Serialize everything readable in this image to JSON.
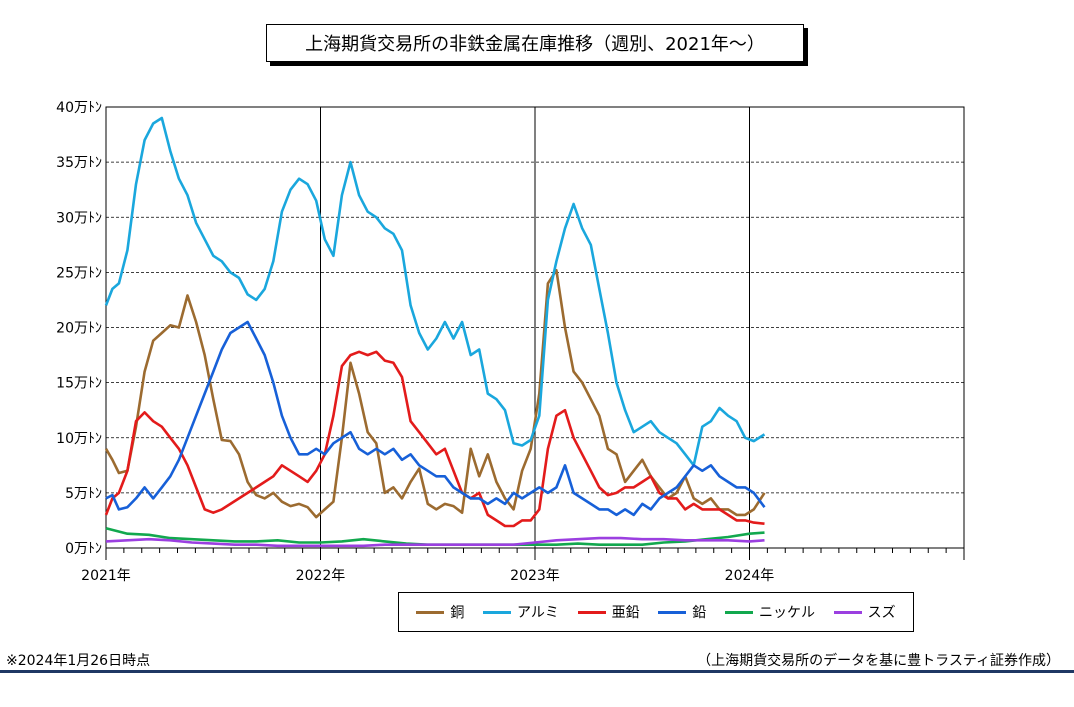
{
  "title": "上海期貨交易所の非鉄金属在庫推移（週別、2021年～）",
  "note_left": "※2024年1月26日時点",
  "note_right": "（上海期貨交易所のデータを基に豊トラスティ証券作成）",
  "chart_data": {
    "type": "line",
    "title": "上海期貨交易所の非鉄金属在庫推移（週別、2021年～）",
    "xlabel": "",
    "ylabel": "",
    "x_range": [
      2021.0,
      2025.0
    ],
    "x_ticks": [
      2021,
      2022,
      2023,
      2024
    ],
    "x_tick_labels": [
      "2021年",
      "2022年",
      "2023年",
      "2024年"
    ],
    "ylim": [
      0,
      40
    ],
    "y_ticks": [
      0,
      5,
      10,
      15,
      20,
      25,
      30,
      35,
      40
    ],
    "y_tick_labels": [
      "0万ﾄﾝ",
      "5万ﾄﾝ",
      "10万ﾄﾝ",
      "15万ﾄﾝ",
      "20万ﾄﾝ",
      "25万ﾄﾝ",
      "30万ﾄﾝ",
      "35万ﾄﾝ",
      "40万ﾄﾝ"
    ],
    "grid": "horizontal dashed, vertical at year boundaries",
    "legend_position": "bottom",
    "series": [
      {
        "name": "銅",
        "color": "#9c6b30",
        "x": [
          2021.0,
          2021.03,
          2021.06,
          2021.1,
          2021.14,
          2021.18,
          2021.22,
          2021.26,
          2021.3,
          2021.34,
          2021.38,
          2021.42,
          2021.46,
          2021.5,
          2021.54,
          2021.58,
          2021.62,
          2021.66,
          2021.7,
          2021.74,
          2021.78,
          2021.82,
          2021.86,
          2021.9,
          2021.94,
          2021.98,
          2022.02,
          2022.06,
          2022.1,
          2022.14,
          2022.18,
          2022.22,
          2022.26,
          2022.3,
          2022.34,
          2022.38,
          2022.42,
          2022.46,
          2022.5,
          2022.54,
          2022.58,
          2022.62,
          2022.66,
          2022.7,
          2022.74,
          2022.78,
          2022.82,
          2022.86,
          2022.9,
          2022.94,
          2022.98,
          2023.02,
          2023.06,
          2023.1,
          2023.14,
          2023.18,
          2023.22,
          2023.26,
          2023.3,
          2023.34,
          2023.38,
          2023.42,
          2023.46,
          2023.5,
          2023.54,
          2023.58,
          2023.62,
          2023.66,
          2023.7,
          2023.74,
          2023.78,
          2023.82,
          2023.86,
          2023.9,
          2023.94,
          2023.98,
          2024.02,
          2024.07
        ],
        "values": [
          9.0,
          8.0,
          6.8,
          7.0,
          11.0,
          16.0,
          18.8,
          19.5,
          20.2,
          20.0,
          22.9,
          20.5,
          17.5,
          13.5,
          9.8,
          9.7,
          8.5,
          6.0,
          4.8,
          4.5,
          5.0,
          4.2,
          3.8,
          4.0,
          3.7,
          2.8,
          3.5,
          4.2,
          10.0,
          16.8,
          14.0,
          10.5,
          9.5,
          5.0,
          5.5,
          4.5,
          6.0,
          7.2,
          4.0,
          3.5,
          4.0,
          3.8,
          3.2,
          9.0,
          6.5,
          8.5,
          6.0,
          4.5,
          3.5,
          7.0,
          9.0,
          14.0,
          24.0,
          25.2,
          20.0,
          16.0,
          15.0,
          13.5,
          12.0,
          9.0,
          8.5,
          6.0,
          7.0,
          8.0,
          6.5,
          5.5,
          4.5,
          5.0,
          6.5,
          4.5,
          4.0,
          4.5,
          3.5,
          3.5,
          3.0,
          3.0,
          3.5,
          5.0
        ]
      },
      {
        "name": "アルミ",
        "color": "#1aa7dd",
        "x": [
          2021.0,
          2021.03,
          2021.06,
          2021.1,
          2021.14,
          2021.18,
          2021.22,
          2021.26,
          2021.3,
          2021.34,
          2021.38,
          2021.42,
          2021.46,
          2021.5,
          2021.54,
          2021.58,
          2021.62,
          2021.66,
          2021.7,
          2021.74,
          2021.78,
          2021.82,
          2021.86,
          2021.9,
          2021.94,
          2021.98,
          2022.02,
          2022.06,
          2022.1,
          2022.14,
          2022.18,
          2022.22,
          2022.26,
          2022.3,
          2022.34,
          2022.38,
          2022.42,
          2022.46,
          2022.5,
          2022.54,
          2022.58,
          2022.62,
          2022.66,
          2022.7,
          2022.74,
          2022.78,
          2022.82,
          2022.86,
          2022.9,
          2022.94,
          2022.98,
          2023.02,
          2023.06,
          2023.1,
          2023.14,
          2023.18,
          2023.22,
          2023.26,
          2023.3,
          2023.34,
          2023.38,
          2023.42,
          2023.46,
          2023.5,
          2023.54,
          2023.58,
          2023.62,
          2023.66,
          2023.7,
          2023.74,
          2023.78,
          2023.82,
          2023.86,
          2023.9,
          2023.94,
          2023.98,
          2024.02,
          2024.07
        ],
        "values": [
          22.0,
          23.5,
          24.0,
          27.0,
          33.0,
          37.0,
          38.5,
          39.0,
          36.0,
          33.5,
          32.0,
          29.5,
          28.0,
          26.5,
          26.0,
          25.0,
          24.5,
          23.0,
          22.5,
          23.5,
          26.0,
          30.5,
          32.5,
          33.5,
          33.0,
          31.5,
          28.0,
          26.5,
          32.0,
          35.0,
          32.0,
          30.5,
          30.0,
          29.0,
          28.5,
          27.0,
          22.0,
          19.5,
          18.0,
          19.0,
          20.5,
          19.0,
          20.5,
          17.5,
          18.0,
          14.0,
          13.5,
          12.5,
          9.5,
          9.3,
          9.8,
          12.0,
          22.5,
          26.0,
          29.0,
          31.2,
          29.0,
          27.5,
          23.5,
          19.5,
          15.0,
          12.5,
          10.5,
          11.0,
          11.5,
          10.5,
          10.0,
          9.5,
          8.5,
          7.5,
          11.0,
          11.5,
          12.7,
          12.0,
          11.5,
          10.0,
          9.7,
          10.3
        ]
      },
      {
        "name": "亜鉛",
        "color": "#e31b1b",
        "x": [
          2021.0,
          2021.03,
          2021.06,
          2021.1,
          2021.14,
          2021.18,
          2021.22,
          2021.26,
          2021.3,
          2021.34,
          2021.38,
          2021.42,
          2021.46,
          2021.5,
          2021.54,
          2021.58,
          2021.62,
          2021.66,
          2021.7,
          2021.74,
          2021.78,
          2021.82,
          2021.86,
          2021.9,
          2021.94,
          2021.98,
          2022.02,
          2022.06,
          2022.1,
          2022.14,
          2022.18,
          2022.22,
          2022.26,
          2022.3,
          2022.34,
          2022.38,
          2022.42,
          2022.46,
          2022.5,
          2022.54,
          2022.58,
          2022.62,
          2022.66,
          2022.7,
          2022.74,
          2022.78,
          2022.82,
          2022.86,
          2022.9,
          2022.94,
          2022.98,
          2023.02,
          2023.06,
          2023.1,
          2023.14,
          2023.18,
          2023.22,
          2023.26,
          2023.3,
          2023.34,
          2023.38,
          2023.42,
          2023.46,
          2023.5,
          2023.54,
          2023.58,
          2023.62,
          2023.66,
          2023.7,
          2023.74,
          2023.78,
          2023.82,
          2023.86,
          2023.9,
          2023.94,
          2023.98,
          2024.02,
          2024.07
        ],
        "values": [
          3.0,
          4.5,
          5.0,
          7.0,
          11.5,
          12.3,
          11.5,
          11.0,
          10.0,
          9.0,
          7.5,
          5.5,
          3.5,
          3.2,
          3.5,
          4.0,
          4.5,
          5.0,
          5.5,
          6.0,
          6.5,
          7.5,
          7.0,
          6.5,
          6.0,
          7.0,
          8.5,
          12.0,
          16.5,
          17.5,
          17.8,
          17.5,
          17.8,
          17.0,
          16.8,
          15.5,
          11.5,
          10.5,
          9.5,
          8.5,
          9.0,
          7.0,
          5.0,
          4.5,
          5.0,
          3.0,
          2.5,
          2.0,
          2.0,
          2.5,
          2.5,
          3.5,
          9.0,
          12.0,
          12.5,
          10.0,
          8.5,
          7.0,
          5.5,
          4.8,
          5.0,
          5.5,
          5.5,
          6.0,
          6.5,
          5.0,
          4.5,
          4.5,
          3.5,
          4.0,
          3.5,
          3.5,
          3.5,
          3.0,
          2.5,
          2.5,
          2.3,
          2.2
        ]
      },
      {
        "name": "鉛",
        "color": "#1760d8",
        "x": [
          2021.0,
          2021.03,
          2021.06,
          2021.1,
          2021.14,
          2021.18,
          2021.22,
          2021.26,
          2021.3,
          2021.34,
          2021.38,
          2021.42,
          2021.46,
          2021.5,
          2021.54,
          2021.58,
          2021.62,
          2021.66,
          2021.7,
          2021.74,
          2021.78,
          2021.82,
          2021.86,
          2021.9,
          2021.94,
          2021.98,
          2022.02,
          2022.06,
          2022.1,
          2022.14,
          2022.18,
          2022.22,
          2022.26,
          2022.3,
          2022.34,
          2022.38,
          2022.42,
          2022.46,
          2022.5,
          2022.54,
          2022.58,
          2022.62,
          2022.66,
          2022.7,
          2022.74,
          2022.78,
          2022.82,
          2022.86,
          2022.9,
          2022.94,
          2022.98,
          2023.02,
          2023.06,
          2023.1,
          2023.14,
          2023.18,
          2023.22,
          2023.26,
          2023.3,
          2023.34,
          2023.38,
          2023.42,
          2023.46,
          2023.5,
          2023.54,
          2023.58,
          2023.62,
          2023.66,
          2023.7,
          2023.74,
          2023.78,
          2023.82,
          2023.86,
          2023.9,
          2023.94,
          2023.98,
          2024.02,
          2024.07
        ],
        "values": [
          4.5,
          4.8,
          3.5,
          3.7,
          4.5,
          5.5,
          4.5,
          5.5,
          6.5,
          8.0,
          10.0,
          12.0,
          14.0,
          16.0,
          18.0,
          19.5,
          20.0,
          20.5,
          19.0,
          17.5,
          15.0,
          12.0,
          10.0,
          8.5,
          8.5,
          9.0,
          8.5,
          9.5,
          10.0,
          10.5,
          9.0,
          8.5,
          9.0,
          8.5,
          9.0,
          8.0,
          8.5,
          7.5,
          7.0,
          6.5,
          6.5,
          5.5,
          5.0,
          4.5,
          4.5,
          4.0,
          4.5,
          4.0,
          5.0,
          4.5,
          5.0,
          5.5,
          5.0,
          5.5,
          7.5,
          5.0,
          4.5,
          4.0,
          3.5,
          3.5,
          3.0,
          3.5,
          3.0,
          4.0,
          3.5,
          4.5,
          5.0,
          5.5,
          6.5,
          7.5,
          7.0,
          7.5,
          6.5,
          6.0,
          5.5,
          5.5,
          5.0,
          3.7
        ]
      },
      {
        "name": "ニッケル",
        "color": "#12a84e",
        "x": [
          2021.0,
          2021.1,
          2021.2,
          2021.3,
          2021.4,
          2021.5,
          2021.6,
          2021.7,
          2021.8,
          2021.9,
          2022.0,
          2022.1,
          2022.2,
          2022.3,
          2022.4,
          2022.5,
          2022.6,
          2022.7,
          2022.8,
          2022.9,
          2023.0,
          2023.1,
          2023.2,
          2023.3,
          2023.4,
          2023.5,
          2023.6,
          2023.7,
          2023.8,
          2023.9,
          2024.0,
          2024.07
        ],
        "values": [
          1.8,
          1.3,
          1.2,
          0.9,
          0.8,
          0.7,
          0.6,
          0.6,
          0.7,
          0.5,
          0.5,
          0.6,
          0.8,
          0.6,
          0.4,
          0.3,
          0.3,
          0.3,
          0.3,
          0.3,
          0.3,
          0.3,
          0.4,
          0.3,
          0.3,
          0.3,
          0.5,
          0.6,
          0.8,
          1.0,
          1.3,
          1.4
        ]
      },
      {
        "name": "スズ",
        "color": "#9b3fe0",
        "x": [
          2021.0,
          2021.1,
          2021.2,
          2021.3,
          2021.4,
          2021.5,
          2021.6,
          2021.7,
          2021.8,
          2021.9,
          2022.0,
          2022.1,
          2022.2,
          2022.3,
          2022.4,
          2022.5,
          2022.6,
          2022.7,
          2022.8,
          2022.9,
          2023.0,
          2023.1,
          2023.2,
          2023.3,
          2023.4,
          2023.5,
          2023.6,
          2023.7,
          2023.8,
          2023.9,
          2024.0,
          2024.07
        ],
        "values": [
          0.6,
          0.7,
          0.8,
          0.7,
          0.5,
          0.4,
          0.3,
          0.3,
          0.2,
          0.2,
          0.2,
          0.2,
          0.2,
          0.3,
          0.3,
          0.3,
          0.3,
          0.3,
          0.3,
          0.3,
          0.5,
          0.7,
          0.8,
          0.9,
          0.9,
          0.8,
          0.8,
          0.7,
          0.7,
          0.7,
          0.6,
          0.7
        ]
      }
    ]
  }
}
